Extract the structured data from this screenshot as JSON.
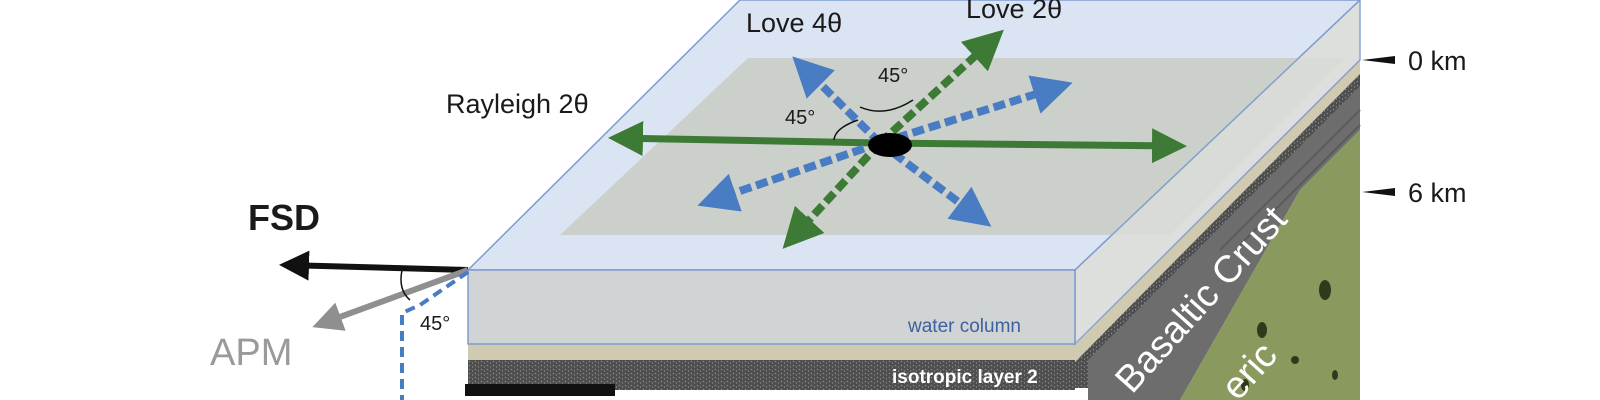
{
  "labels": {
    "love4": "Love 4θ",
    "love2": "Love 2θ",
    "rayleigh2": "Rayleigh 2θ",
    "angle_top": "45°",
    "angle_left": "45°",
    "angle_apm": "45°",
    "fsd": "FSD",
    "apm": "APM",
    "water_column": "water column",
    "isotropic_layer": "isotropic layer 2",
    "basaltic_crust": "Basaltic Crust",
    "lower_text": "eric",
    "depth_0": "0 km",
    "depth_6": "6 km"
  },
  "colors": {
    "green": "#3d7a35",
    "blue": "#4a7cc4",
    "water": "#dbe4f2",
    "water_edge": "#7d9bd1",
    "grey_top": "#c8ccc4",
    "mantle": "#8a9a5e",
    "crust": "#6f6f6f",
    "sediment": "#cfcab0",
    "fsd_arrow": "#111111",
    "apm_arrow": "#8f8f8f"
  }
}
